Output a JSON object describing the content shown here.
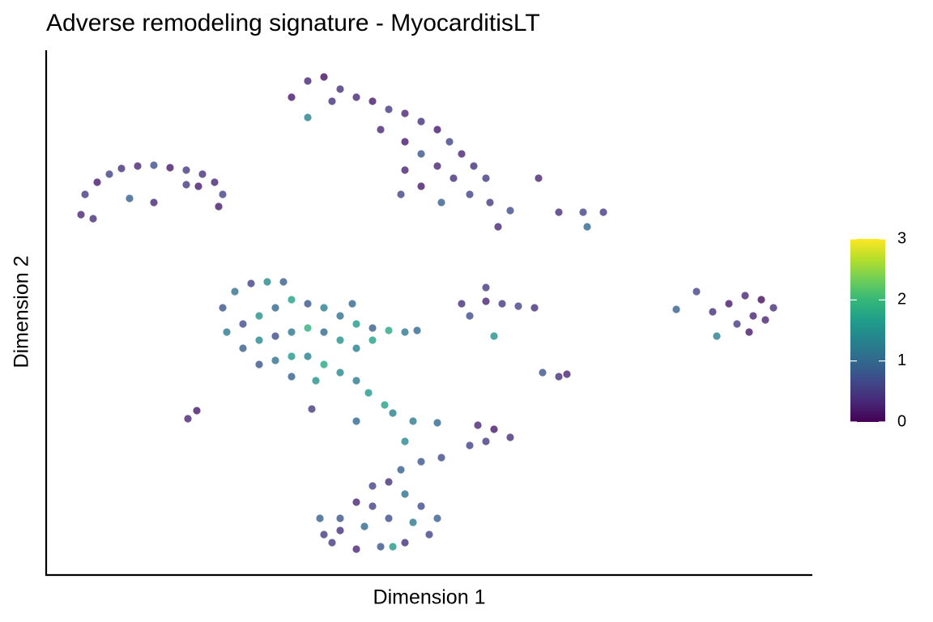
{
  "chart_data": {
    "type": "scatter",
    "title": "Adverse remodeling signature - MyocarditisLT",
    "xlabel": "Dimension 1",
    "ylabel": "Dimension 2",
    "xlim": [
      0,
      19
    ],
    "ylim": [
      0,
      13
    ],
    "x": [
      0.86,
      0.96,
      1.26,
      1.56,
      1.86,
      2.26,
      2.66,
      3.06,
      3.46,
      3.86,
      4.16,
      4.36,
      4.26,
      1.16,
      2.06,
      2.66,
      3.46,
      3.76,
      6.06,
      6.46,
      6.86,
      7.26,
      7.66,
      8.06,
      8.46,
      8.86,
      9.26,
      9.66,
      9.96,
      10.26,
      10.56,
      10.86,
      8.86,
      9.26,
      9.66,
      10.06,
      8.86,
      8.76,
      9.26,
      9.76,
      10.96,
      11.16,
      11.46,
      12.16,
      12.66,
      13.26,
      13.76,
      13.36,
      6.46,
      7.06,
      8.26,
      10.46,
      4.36,
      4.66,
      5.06,
      5.46,
      5.86,
      4.46,
      4.86,
      5.26,
      5.66,
      6.06,
      6.46,
      6.86,
      7.26,
      7.66,
      8.06,
      8.46,
      8.86,
      9.16,
      4.86,
      5.26,
      5.66,
      6.06,
      6.46,
      6.86,
      7.26,
      7.66,
      8.06,
      5.26,
      5.66,
      6.06,
      6.46,
      6.86,
      7.26,
      7.66,
      6.06,
      6.66,
      7.96,
      8.36,
      8.56,
      7.66,
      6.56,
      7.56,
      10.26,
      10.86,
      11.26,
      11.66,
      12.06,
      10.46,
      11.06,
      10.86,
      16.86,
      17.26,
      17.66,
      17.96,
      17.46,
      17.06,
      17.36,
      17.76,
      16.06,
      16.46,
      16.56,
      15.56,
      12.26,
      12.66,
      12.86,
      3.5,
      3.72,
      10.66,
      11.06,
      11.46,
      10.86,
      10.46,
      9.06,
      9.66,
      8.86,
      9.76,
      9.26,
      8.76,
      6.86,
      7.26,
      7.66,
      8.06,
      8.46,
      8.86,
      9.26,
      9.66,
      9.46,
      8.86,
      8.26,
      7.66,
      7.06,
      7.86,
      8.46,
      9.06,
      8.06,
      7.26,
      6.76,
      8.56
    ],
    "y": [
      8.9,
      9.4,
      9.7,
      9.9,
      10.04,
      10.1,
      10.12,
      10.06,
      10.0,
      9.9,
      9.7,
      9.4,
      9.1,
      8.8,
      9.3,
      9.2,
      9.64,
      9.6,
      11.8,
      12.2,
      12.3,
      12.0,
      11.8,
      11.7,
      11.5,
      11.4,
      11.2,
      11.0,
      10.7,
      10.4,
      10.1,
      9.8,
      10.7,
      10.4,
      10.1,
      9.8,
      10.0,
      9.4,
      9.6,
      9.2,
      9.2,
      8.6,
      9.0,
      9.8,
      8.96,
      8.96,
      8.96,
      8.6,
      11.3,
      11.7,
      11.0,
      9.4,
      6.6,
      7.0,
      7.2,
      7.24,
      7.24,
      6.0,
      6.2,
      6.4,
      6.6,
      6.8,
      6.7,
      6.6,
      6.4,
      6.2,
      6.1,
      6.04,
      6.0,
      6.04,
      5.6,
      5.8,
      5.9,
      6.0,
      6.1,
      6.0,
      5.8,
      5.6,
      5.8,
      5.2,
      5.3,
      5.4,
      5.4,
      5.2,
      5.0,
      4.8,
      4.9,
      4.8,
      4.5,
      4.2,
      4.0,
      3.8,
      4.1,
      6.7,
      6.7,
      6.76,
      6.7,
      6.64,
      6.6,
      6.4,
      5.9,
      7.1,
      6.7,
      6.9,
      6.8,
      6.6,
      6.4,
      6.2,
      6.0,
      6.3,
      7.0,
      6.5,
      5.9,
      6.56,
      5.0,
      4.9,
      4.96,
      3.86,
      4.06,
      3.7,
      3.6,
      3.4,
      3.3,
      3.2,
      3.8,
      3.76,
      3.3,
      2.9,
      2.8,
      2.6,
      1.0,
      1.4,
      1.8,
      2.2,
      2.3,
      2.0,
      1.7,
      1.4,
      1.0,
      0.8,
      0.7,
      0.64,
      0.8,
      1.2,
      1.4,
      1.3,
      1.7,
      1.1,
      1.4,
      0.7
    ],
    "values": [
      0.3,
      0.5,
      0.2,
      0.6,
      0.4,
      0.3,
      0.7,
      0.2,
      0.5,
      0.4,
      0.3,
      0.6,
      0.2,
      0.4,
      0.9,
      0.3,
      0.5,
      0.2,
      0.2,
      0.3,
      0.1,
      0.4,
      0.3,
      0.2,
      0.5,
      0.3,
      0.4,
      0.2,
      0.6,
      0.3,
      0.4,
      0.5,
      0.2,
      0.8,
      0.3,
      0.4,
      0.3,
      0.6,
      0.2,
      0.9,
      0.5,
      0.3,
      0.7,
      0.3,
      0.4,
      0.6,
      0.5,
      1.0,
      1.3,
      0.4,
      0.3,
      0.6,
      0.8,
      1.1,
      0.6,
      1.4,
      0.9,
      1.2,
      0.7,
      1.5,
      1.0,
      1.7,
      0.8,
      1.3,
      1.1,
      1.6,
      0.9,
      1.8,
      1.2,
      1.0,
      0.9,
      1.4,
      0.7,
      1.2,
      1.9,
      1.0,
      1.5,
      1.3,
      1.7,
      0.8,
      1.1,
      1.6,
      1.3,
      1.8,
      1.4,
      1.2,
      0.9,
      1.5,
      1.6,
      1.7,
      1.3,
      1.0,
      0.5,
      1.0,
      0.4,
      0.3,
      0.5,
      0.6,
      0.4,
      0.7,
      1.5,
      0.5,
      0.2,
      0.3,
      0.1,
      0.4,
      0.3,
      0.5,
      0.2,
      0.3,
      0.6,
      0.4,
      1.3,
      0.9,
      0.8,
      0.4,
      0.3,
      0.3,
      0.2,
      0.3,
      0.2,
      0.4,
      0.5,
      0.6,
      1.2,
      1.0,
      1.4,
      0.7,
      0.8,
      0.9,
      0.5,
      0.8,
      0.3,
      0.6,
      0.4,
      1.1,
      0.7,
      0.9,
      0.6,
      0.4,
      0.8,
      0.3,
      0.5,
      1.0,
      0.7,
      1.2,
      0.6,
      0.4,
      0.9,
      1.6
    ],
    "colorbar": {
      "lim": [
        0,
        3
      ],
      "ticks": [
        0,
        1,
        2,
        3
      ],
      "colors": [
        "#440154",
        "#482878",
        "#3e4989",
        "#31688e",
        "#26828e",
        "#1f9e89",
        "#35b779",
        "#6ece58",
        "#b5de2b",
        "#fde725"
      ]
    }
  }
}
